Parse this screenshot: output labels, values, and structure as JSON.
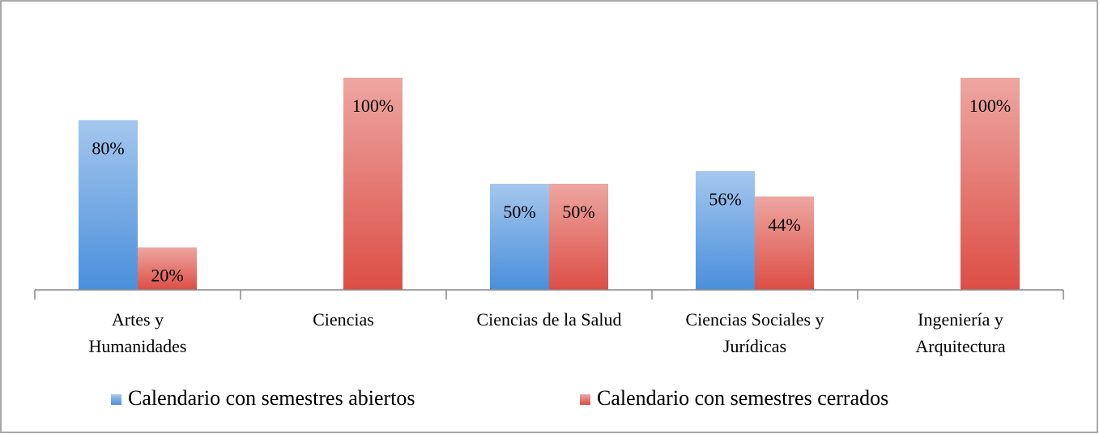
{
  "chart_data": {
    "type": "bar",
    "categories": [
      "Artes y\nHumanidades",
      "Ciencias",
      "Ciencias de la Salud",
      "Ciencias Sociales y\nJurídicas",
      "Ingeniería y\nArquitectura"
    ],
    "series": [
      {
        "name": "Calendario con semestres abiertos",
        "color": "#4a8fdc",
        "values": [
          80,
          null,
          50,
          56,
          null
        ],
        "value_labels": [
          "80%",
          null,
          "50%",
          "56%",
          null
        ]
      },
      {
        "name": "Calendario con semestres cerrados",
        "color": "#dc4e45",
        "values": [
          20,
          100,
          50,
          44,
          100
        ],
        "value_labels": [
          "20%",
          "100%",
          "50%",
          "44%",
          "100%"
        ]
      }
    ],
    "ylim": [
      0,
      100
    ],
    "legend": "bottom"
  }
}
